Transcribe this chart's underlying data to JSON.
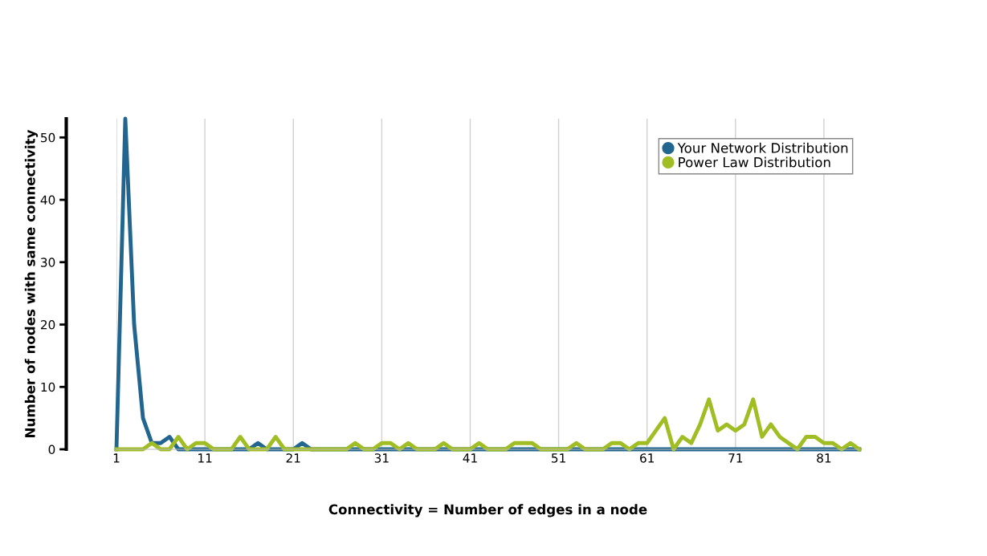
{
  "chart_data": {
    "type": "line",
    "xlabel": "Connectivity = Number of edges in a node",
    "ylabel": "Number of nodes with same connectivity",
    "x": [
      1,
      2,
      3,
      4,
      5,
      6,
      7,
      8,
      9,
      10,
      11,
      12,
      13,
      14,
      15,
      16,
      17,
      18,
      19,
      20,
      21,
      22,
      23,
      24,
      25,
      26,
      27,
      28,
      29,
      30,
      31,
      32,
      33,
      34,
      35,
      36,
      37,
      38,
      39,
      40,
      41,
      42,
      43,
      44,
      45,
      46,
      47,
      48,
      49,
      50,
      51,
      52,
      53,
      54,
      55,
      56,
      57,
      58,
      59,
      60,
      61,
      62,
      63,
      64,
      65,
      66,
      67,
      68,
      69,
      70,
      71,
      72,
      73,
      74,
      75,
      76,
      77,
      78,
      79,
      80,
      81,
      82,
      83,
      84,
      85
    ],
    "series": [
      {
        "name": "Your Network Distribution",
        "color": "#22668f",
        "values": [
          0,
          53,
          20,
          5,
          1,
          1,
          2,
          0,
          0,
          0,
          0,
          0,
          0,
          0,
          0,
          0,
          1,
          0,
          0,
          0,
          0,
          1,
          0,
          0,
          0,
          0,
          0,
          0,
          0,
          0,
          0,
          0,
          0,
          0,
          0,
          0,
          0,
          0,
          0,
          0,
          0,
          0,
          0,
          0,
          0,
          0,
          0,
          0,
          0,
          0,
          0,
          0,
          0,
          0,
          0,
          0,
          0,
          0,
          0,
          0,
          0,
          0,
          0,
          0,
          0,
          0,
          0,
          0,
          0,
          0,
          0,
          0,
          0,
          0,
          0,
          0,
          0,
          0,
          0,
          0,
          0,
          0,
          0,
          0,
          0
        ]
      },
      {
        "name": "Power Law Distribution",
        "color": "#a0bd24",
        "values": [
          0,
          0,
          0,
          0,
          1,
          0,
          0,
          2,
          0,
          1,
          1,
          0,
          0,
          0,
          2,
          0,
          0,
          0,
          2,
          0,
          0,
          0,
          0,
          0,
          0,
          0,
          0,
          1,
          0,
          0,
          1,
          1,
          0,
          1,
          0,
          0,
          0,
          1,
          0,
          0,
          0,
          1,
          0,
          0,
          0,
          1,
          1,
          1,
          0,
          0,
          0,
          0,
          1,
          0,
          0,
          0,
          1,
          1,
          0,
          1,
          1,
          3,
          5,
          0,
          2,
          1,
          4,
          8,
          3,
          4,
          3,
          4,
          8,
          2,
          4,
          2,
          1,
          0,
          2,
          2,
          1,
          1,
          0,
          1,
          0
        ]
      }
    ],
    "xlim": [
      1,
      85
    ],
    "xticks": [
      1,
      11,
      21,
      31,
      41,
      51,
      61,
      71,
      81
    ],
    "ylim": [
      0,
      53
    ],
    "yticks": [
      0,
      10,
      20,
      30,
      40,
      50
    ],
    "grid": "x",
    "legend": "top right",
    "marker": "none",
    "line_style": "solid"
  }
}
